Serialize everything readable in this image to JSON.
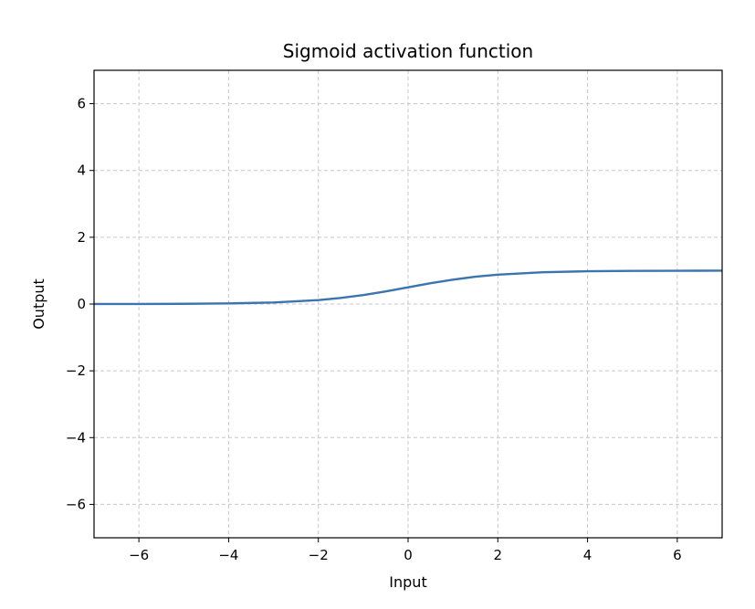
{
  "chart_data": {
    "type": "line",
    "title": "Sigmoid activation function",
    "xlabel": "Input",
    "ylabel": "Output",
    "xlim": [
      -7,
      7
    ],
    "ylim": [
      -7,
      7
    ],
    "xticks": [
      -6,
      -4,
      -2,
      0,
      2,
      4,
      6
    ],
    "xtick_labels": [
      "−6",
      "−4",
      "−2",
      "0",
      "2",
      "4",
      "6"
    ],
    "yticks": [
      -6,
      -4,
      -2,
      0,
      2,
      4,
      6
    ],
    "ytick_labels": [
      "−6",
      "−4",
      "−2",
      "0",
      "2",
      "4",
      "6"
    ],
    "grid": true,
    "grid_style": "dashed",
    "legend": "none",
    "series": [
      {
        "name": "sigmoid",
        "color": "#3b75af",
        "x": [
          -7,
          -6,
          -5,
          -4,
          -3,
          -2,
          -1.5,
          -1,
          -0.5,
          0,
          0.5,
          1,
          1.5,
          2,
          3,
          4,
          5,
          6,
          7
        ],
        "y": [
          0.0009,
          0.0025,
          0.0067,
          0.018,
          0.0474,
          0.1192,
          0.1824,
          0.2689,
          0.3775,
          0.5,
          0.6225,
          0.7311,
          0.8176,
          0.8808,
          0.9526,
          0.982,
          0.9933,
          0.9975,
          0.9991
        ]
      }
    ]
  }
}
